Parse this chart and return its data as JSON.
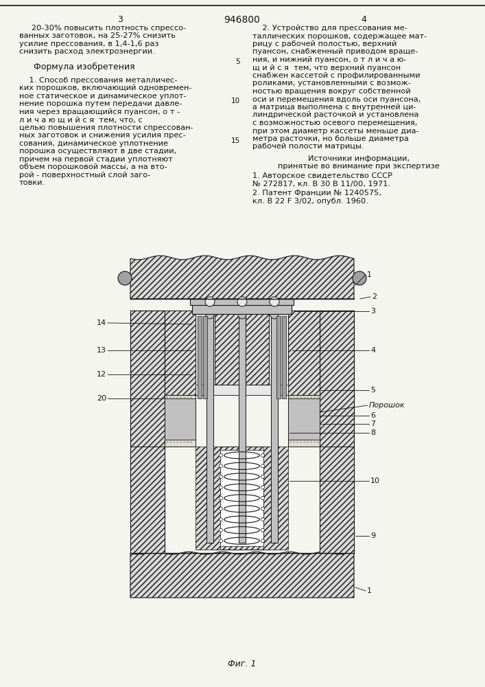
{
  "page_number": "946800",
  "bg_color": "#f5f5f0",
  "text_color": "#111111",
  "figure_caption": "Фиг. 1",
  "left_col_number": "3",
  "right_col_number": "4",
  "left_lines": [
    "20-30% повысить плотность спрессо-",
    "ванных заготовок, на 25-27% снизить",
    "усилие прессования, в 1,4-1,6 раз",
    "снизить расход электроэнергии."
  ],
  "formula_header": "Формула изобретения",
  "formula_lines": [
    "    1. Способ прессования металличес-",
    "ких порошков, включающий одновремен-",
    "ное статическое и динамическое уплот-",
    "нение порошка путем передачи давле-",
    "ния через вращающийся пуансон, о т -",
    "л и ч а ю щ и й с я  тем, что, с",
    "целью повышения плотности спрессован-",
    "ных заготовок и снижения усилия прес-",
    "сования, динамическое уплотнение",
    "порошка осуществляют в две стадии,",
    "причем на первой стадии уплотняют",
    "объем порошковой массы, а на вто-",
    "рой - поверхностный слой заго-",
    "товки."
  ],
  "right_lines_1": [
    "    2. Устройство для прессования ме-",
    "таллических порошков, содержащее мат-",
    "рицу с рабочей полостью, верхний",
    "пуансон, снабженный приводом враще-",
    "ния, и нижний пуансон, о т л и ч а ю-",
    "щ и й с я  тем, что верхний пуансон",
    "снабжен кассетой с профилированными",
    "роликами, установленными с возмож-",
    "ностью вращения вокруг собственной",
    "оси и перемещения вдоль оси пуансона,",
    "а матрица выполнена с внутренней ци-",
    "линдрической расточкой и установлена",
    "с возможностью осевого перемещения,",
    "при этом диаметр кассеты меньше диа-",
    "метра расточки, но больше диаметра",
    "рабочей полости матрицы."
  ],
  "line_numbers": {
    "4": "5",
    "9": "10",
    "14": "15"
  },
  "sources_header": [
    "Источники информации,",
    "принятые во внимание при экспертизе"
  ],
  "source1": [
    "1. Авторское свидетельство СССР",
    "№ 272817, кл. В 30 В 11/00, 1971."
  ],
  "source2": [
    "2. Патент Франции № 1240575,",
    "кл. В 22 F 3/02, опубл. 1960."
  ]
}
